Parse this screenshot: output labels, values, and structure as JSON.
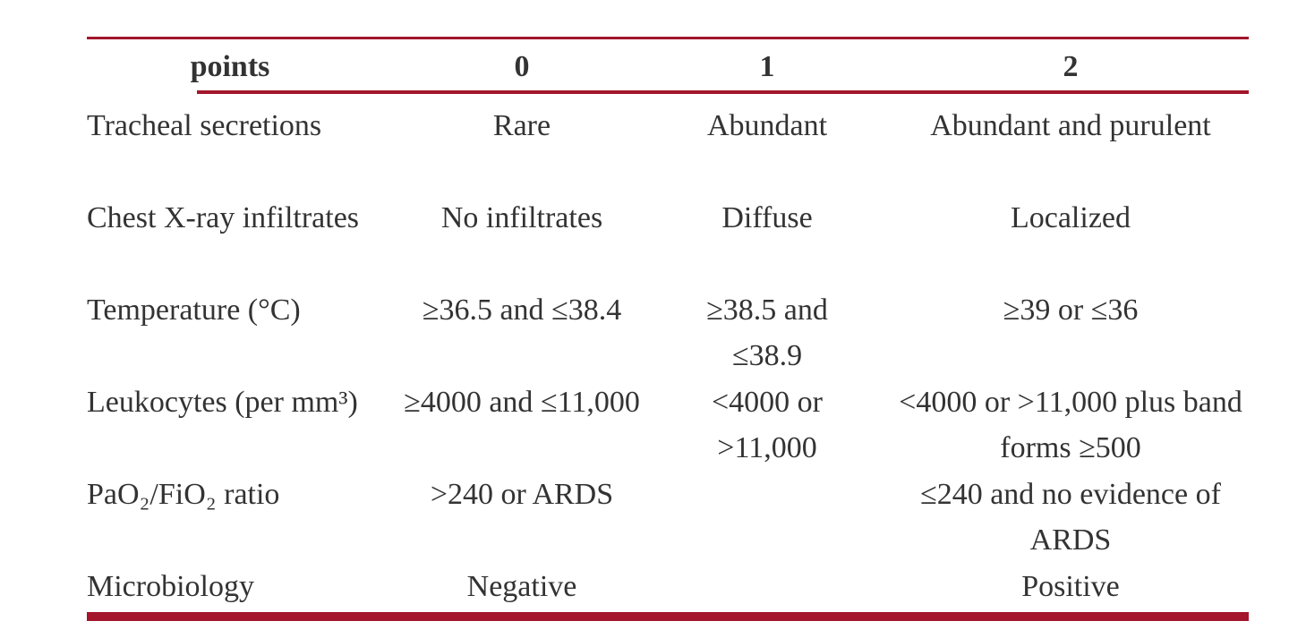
{
  "table": {
    "header": [
      "points",
      "0",
      "1",
      "2"
    ],
    "rows": [
      [
        "Tracheal secretions",
        "Rare",
        "Abundant",
        "Abundant and purulent"
      ],
      [
        "Chest X-ray infiltrates",
        "No infiltrates",
        "Diffuse",
        "Localized"
      ],
      [
        "Temperature (°C)",
        "≥36.5 and ≤38.4",
        "≥38.5 and ≤38.9",
        "≥39 or ≤36"
      ],
      [
        "Leukocytes (per mm³)",
        "≥4000 and ≤11,000",
        "<4000 or >11,000",
        "<4000 or >11,000 plus band forms ≥500"
      ],
      [
        "PaO₂/FiO₂ ratio",
        ">240 or ARDS",
        null,
        "≤240 and no evidence of ARDS"
      ],
      [
        "Microbiology",
        "Negative",
        null,
        "Positive"
      ]
    ]
  }
}
